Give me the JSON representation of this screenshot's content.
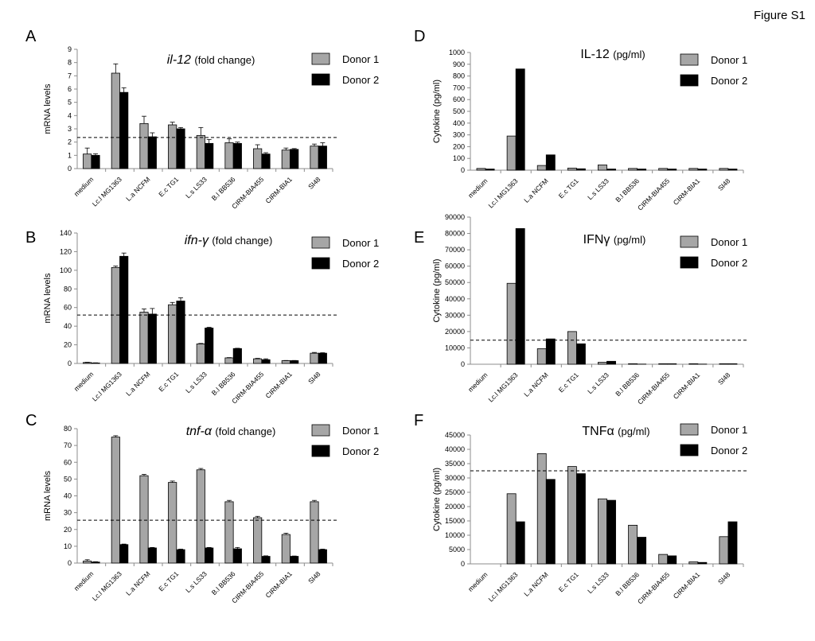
{
  "figure_label": "Figure S1",
  "legend": {
    "donor1": "Donor 1",
    "donor2": "Donor 2"
  },
  "colors": {
    "donor1": "#a6a6a6",
    "donor2": "#000000",
    "axis": "#8c8c8c",
    "threshold": "#000000"
  },
  "chart_data": [
    {
      "panel": "A",
      "type": "bar",
      "title_main": "il-12",
      "title_suffix": "(fold change)",
      "ylabel": "mRNA levels",
      "ylim": [
        0,
        9
      ],
      "yticks": [
        0,
        1,
        2,
        3,
        4,
        5,
        6,
        7,
        8,
        9
      ],
      "threshold": 2.35,
      "error_bars": true,
      "categories": [
        "medium",
        "Lc.l MG1363",
        "L.a NCFM",
        "E.c TG1",
        "L.s LS33",
        "B.l BB536",
        "CIRM-BIA455",
        "CIRM-BIA1",
        "SI48"
      ],
      "series": [
        {
          "name": "Donor 1",
          "values": [
            1.1,
            7.2,
            3.4,
            3.3,
            2.5,
            1.95,
            1.5,
            1.4,
            1.7
          ],
          "errors": [
            0.45,
            0.7,
            0.55,
            0.2,
            0.6,
            0.3,
            0.3,
            0.15,
            0.15
          ]
        },
        {
          "name": "Donor 2",
          "values": [
            1.0,
            5.75,
            2.4,
            3.0,
            1.9,
            1.9,
            1.1,
            1.45,
            1.7
          ],
          "errors": [
            0.12,
            0.35,
            0.3,
            0.1,
            0.3,
            0.1,
            0.1,
            0.06,
            0.25
          ]
        }
      ]
    },
    {
      "panel": "B",
      "type": "bar",
      "title_main": "ifn-γ",
      "title_suffix": "(fold change)",
      "ylabel": "mRNA levels",
      "ylim": [
        0,
        140
      ],
      "yticks": [
        0,
        20,
        40,
        60,
        80,
        100,
        120,
        140
      ],
      "threshold": 52,
      "error_bars": true,
      "categories": [
        "medium",
        "Lc.l MG1363",
        "L.a NCFM",
        "E.c TG1",
        "L.s LS33",
        "B.l BB536",
        "CIRM-BIA455",
        "CIRM-BIA1",
        "SI48"
      ],
      "series": [
        {
          "name": "Donor 1",
          "values": [
            1,
            103,
            55,
            63,
            21,
            6,
            5,
            3,
            11
          ],
          "errors": [
            0.3,
            1.5,
            3.5,
            2.5,
            0.5,
            0.3,
            0.5,
            0.2,
            0.8
          ]
        },
        {
          "name": "Donor 2",
          "values": [
            0.5,
            115,
            53,
            67,
            38,
            16,
            4,
            3,
            11
          ],
          "errors": [
            0.2,
            3.5,
            6,
            3.5,
            0.8,
            0.3,
            1,
            0.2,
            0.5
          ]
        }
      ]
    },
    {
      "panel": "C",
      "type": "bar",
      "title_main": "tnf-α",
      "title_suffix": "(fold change)",
      "ylabel": "mRNA levels",
      "ylim": [
        0,
        80
      ],
      "yticks": [
        0,
        10,
        20,
        30,
        40,
        50,
        60,
        70,
        80
      ],
      "threshold": 25.5,
      "error_bars": true,
      "categories": [
        "medium",
        "Lc.l MG1363",
        "L.a NCFM",
        "E.c TG1",
        "L.s LS33",
        "B.l BB536",
        "CIRM-BIA455",
        "CIRM-BIA1",
        "SI48"
      ],
      "series": [
        {
          "name": "Donor 1",
          "values": [
            1.2,
            75,
            52,
            48,
            55.5,
            36.5,
            27,
            17,
            36.5
          ],
          "errors": [
            0.8,
            0.8,
            0.8,
            0.8,
            0.8,
            0.8,
            0.8,
            0.8,
            0.8
          ]
        },
        {
          "name": "Donor 2",
          "values": [
            0.6,
            11,
            9,
            8,
            9,
            8.5,
            4,
            4,
            8
          ],
          "errors": [
            0.2,
            0.3,
            0.3,
            0.3,
            0.3,
            0.8,
            0.3,
            0.2,
            0.3
          ]
        }
      ]
    },
    {
      "panel": "D",
      "type": "bar",
      "title_main": "IL-12",
      "title_suffix": "(pg/ml)",
      "ylabel": "Cytokine (pg/ml)",
      "ylim": [
        0,
        1000
      ],
      "yticks": [
        0,
        100,
        200,
        300,
        400,
        500,
        600,
        700,
        800,
        900,
        1000
      ],
      "threshold": null,
      "error_bars": false,
      "categories": [
        "medium",
        "Lc.l MG1363",
        "L.a NCFM",
        "E.c TG1",
        "L.s LS33",
        "B.l BB536",
        "CIRM-BIA455",
        "CIRM-BIA1",
        "SI48"
      ],
      "series": [
        {
          "name": "Donor 1",
          "values": [
            15,
            290,
            40,
            18,
            45,
            15,
            15,
            15,
            15
          ]
        },
        {
          "name": "Donor 2",
          "values": [
            10,
            860,
            130,
            12,
            10,
            10,
            10,
            10,
            10
          ]
        }
      ]
    },
    {
      "panel": "E",
      "type": "bar",
      "title_main": "IFNγ",
      "title_suffix": "(pg/ml)",
      "ylabel": "Cytokine (pg/ml)",
      "ylim": [
        0,
        90000
      ],
      "yticks": [
        0,
        10000,
        20000,
        30000,
        40000,
        50000,
        60000,
        70000,
        80000,
        90000
      ],
      "threshold": 14700,
      "error_bars": false,
      "categories": [
        "medium",
        "Lc.l MG1363",
        "L.a NCFM",
        "E.c TG1",
        "L.s LS33",
        "B.l BB536",
        "CIRM-BIA455",
        "CIRM-BIA1",
        "SI48"
      ],
      "series": [
        {
          "name": "Donor 1",
          "values": [
            0,
            49500,
            9500,
            20000,
            1200,
            300,
            300,
            300,
            300
          ]
        },
        {
          "name": "Donor 2",
          "values": [
            0,
            83000,
            15500,
            12500,
            1800,
            100,
            300,
            100,
            300
          ]
        }
      ]
    },
    {
      "panel": "F",
      "type": "bar",
      "title_main": "TNFα",
      "title_suffix": "(pg/ml)",
      "ylabel": "Cytokine (pg/ml)",
      "ylim": [
        0,
        45000
      ],
      "yticks": [
        0,
        5000,
        10000,
        15000,
        20000,
        25000,
        30000,
        35000,
        40000,
        45000
      ],
      "threshold": 32500,
      "error_bars": false,
      "categories": [
        "medium",
        "Lc.l MG1363",
        "L.a NCFM",
        "E.c TG1",
        "L.s LS33",
        "B.l BB536",
        "CIRM-BIA455",
        "CIRM-BIA1",
        "SI48"
      ],
      "series": [
        {
          "name": "Donor 1",
          "values": [
            0,
            24500,
            38500,
            34000,
            22700,
            13500,
            3300,
            700,
            9500
          ]
        },
        {
          "name": "Donor 2",
          "values": [
            0,
            14700,
            29500,
            31500,
            22200,
            9300,
            2800,
            500,
            14700
          ]
        }
      ]
    }
  ]
}
